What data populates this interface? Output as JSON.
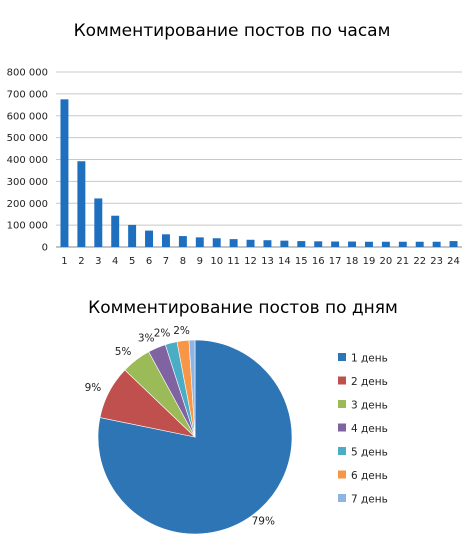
{
  "chart_data": [
    {
      "type": "bar",
      "title": "Комментирование  постов по часам",
      "xlabel": "",
      "ylabel": "",
      "categories": [
        "1",
        "2",
        "3",
        "4",
        "5",
        "6",
        "7",
        "8",
        "9",
        "10",
        "11",
        "12",
        "13",
        "14",
        "15",
        "16",
        "17",
        "18",
        "19",
        "20",
        "21",
        "22",
        "23",
        "24"
      ],
      "values": [
        675000,
        392000,
        222000,
        143000,
        101000,
        75000,
        58000,
        50000,
        44000,
        40000,
        36000,
        33000,
        31000,
        29000,
        27000,
        26000,
        25000,
        25000,
        24000,
        24000,
        24000,
        24000,
        24000,
        27000
      ],
      "ylim": [
        0,
        800000
      ],
      "yticks": [
        "0",
        "100 000",
        "200 000",
        "300 000",
        "400 000",
        "500 000",
        "600 000",
        "700 000",
        "800 000"
      ],
      "grid": true,
      "color": "#1f6fbf"
    },
    {
      "type": "pie",
      "title": "Комментирование  постов по дням",
      "labels": [
        "1 день",
        "2 день",
        "3 день",
        "4 день",
        "5 день",
        "6 день",
        "7 день"
      ],
      "values": [
        79,
        9,
        5,
        3,
        2,
        2,
        1
      ],
      "data_labels": [
        "79%",
        "9%",
        "5%",
        "3%",
        "2%",
        "2%",
        ""
      ],
      "colors": [
        "#2e75b6",
        "#c0504d",
        "#9bbb59",
        "#8064a2",
        "#4bacc6",
        "#f79646",
        "#8eb4e3"
      ],
      "legend": "right"
    }
  ]
}
